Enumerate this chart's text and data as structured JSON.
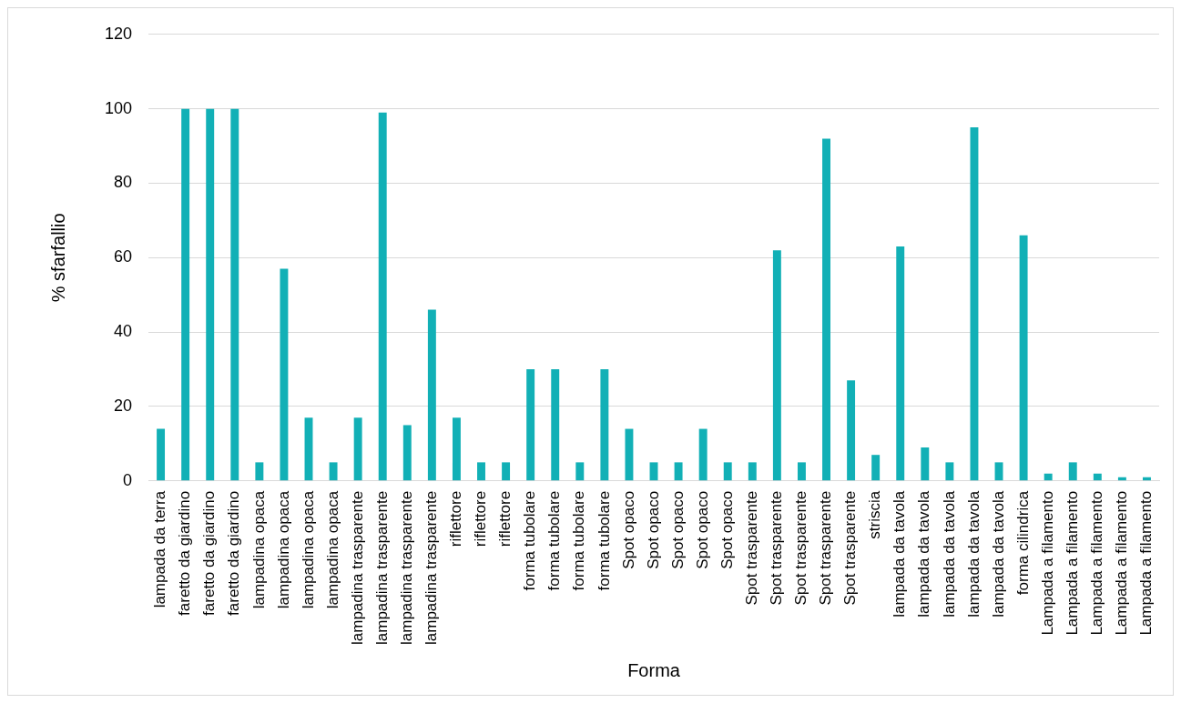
{
  "chart_data": {
    "type": "bar",
    "xlabel": "Forma",
    "ylabel": "% sfarfallio",
    "categories": [
      "lampada da terra",
      "faretto da giardino",
      "faretto da giardino",
      "faretto da giardino",
      "lampadina opaca",
      "lampadina opaca",
      "lampadina opaca",
      "lampadina opaca",
      "lampadina trasparente",
      "lampadina trasparente",
      "lampadina trasparente",
      "lampadina trasparente",
      "riflettore",
      "riflettore",
      "riflettore",
      "forma tubolare",
      "forma tubolare",
      "forma tubolare",
      "forma tubolare",
      "Spot opaco",
      "Spot opaco",
      "Spot opaco",
      "Spot opaco",
      "Spot opaco",
      "Spot trasparente",
      "Spot trasparente",
      "Spot trasparente",
      "Spot trasparente",
      "Spot trasparente",
      "striscia",
      "lampada da tavola",
      "lampada da tavola",
      "lampada da tavola",
      "lampada da tavola",
      "lampada da tavola",
      "forma cilindrica",
      "Lampada a filamento",
      "Lampada a filamento",
      "Lampada a filamento",
      "Lampada a filamento",
      "Lampada a filamento"
    ],
    "values": [
      14,
      100,
      100,
      100,
      5,
      57,
      17,
      5,
      17,
      99,
      15,
      46,
      17,
      5,
      5,
      30,
      30,
      5,
      30,
      14,
      5,
      5,
      14,
      5,
      5,
      62,
      5,
      92,
      27,
      7,
      63,
      9,
      5,
      95,
      5,
      66,
      2,
      5,
      2,
      1,
      1
    ],
    "color": "#12b0b6",
    "ylim": [
      0,
      120
    ],
    "yticks": [
      0,
      20,
      40,
      60,
      80,
      100,
      120
    ],
    "grid": "y",
    "legend": false
  }
}
